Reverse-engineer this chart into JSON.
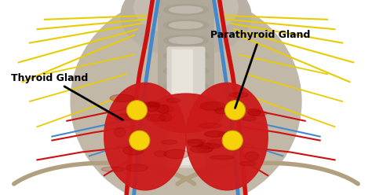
{
  "fig_width": 4.74,
  "fig_height": 2.48,
  "dpi": 100,
  "bg_color": "#ffffff",
  "label_thyroid": "Thyroid Gland",
  "label_parathyroid": "Parathyroid Gland",
  "thyroid_color": "#cc1a1a",
  "parathyroid_color": "#f5d20a",
  "artery_color": "#cc1111",
  "vein_color": "#4488cc",
  "nerve_color": "#e8cc00",
  "annotation_color": "#000000",
  "annotation_fontsize": 9,
  "annotation_fontweight": "bold",
  "neck_bg": "#c8bfb0",
  "skull_color": "#b0a898",
  "trachea_color": "#d0ccc0",
  "spine_color": "#c0b8a8"
}
